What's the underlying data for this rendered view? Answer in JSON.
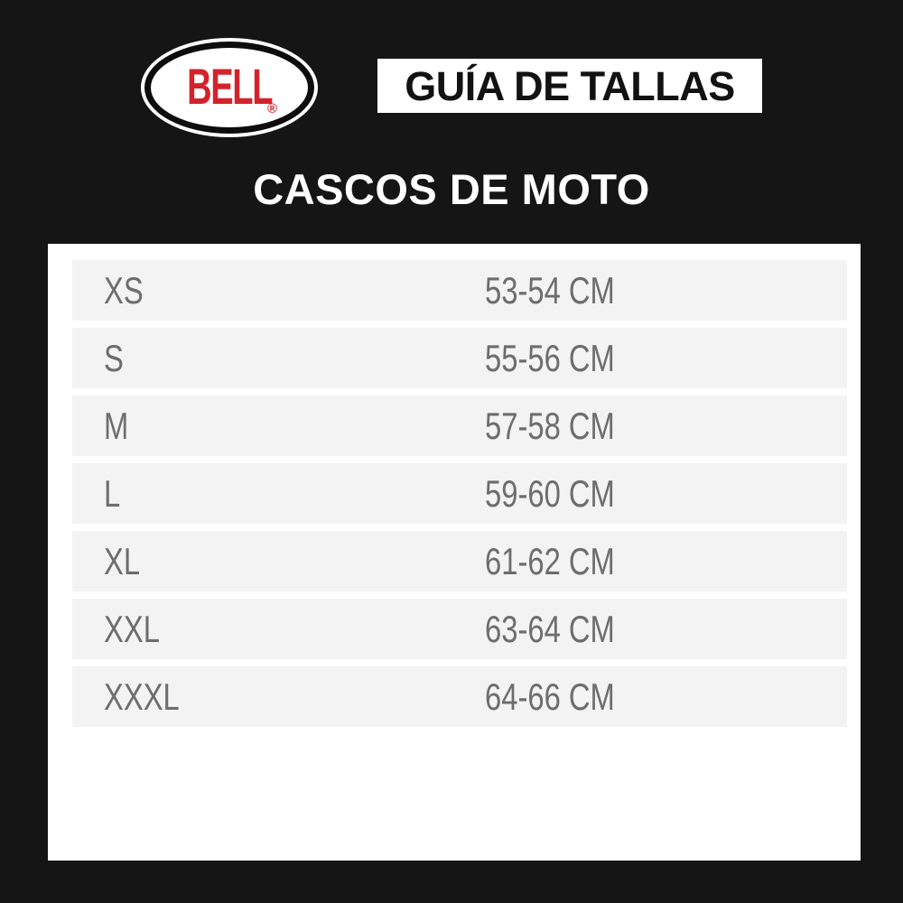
{
  "header": {
    "logo": {
      "brand": "BELL",
      "registered_mark": "®"
    },
    "badge": {
      "label": "GUÍA DE TALLAS"
    }
  },
  "title": "CASCOS DE MOTO",
  "size_table": {
    "rows": [
      {
        "size": "XS",
        "measurement": "53-54 CM"
      },
      {
        "size": "S",
        "measurement": "55-56 CM"
      },
      {
        "size": "M",
        "measurement": "57-58 CM"
      },
      {
        "size": "L",
        "measurement": "59-60 CM"
      },
      {
        "size": "XL",
        "measurement": "61-62 CM"
      },
      {
        "size": "XXL",
        "measurement": "63-64 CM"
      },
      {
        "size": "XXXL",
        "measurement": "64-66 CM"
      }
    ]
  },
  "colors": {
    "background": "#151515",
    "brand_red": "#d2232c",
    "panel_white": "#ffffff",
    "row_background": "#f3f3f3",
    "table_text": "#6d6d6d",
    "badge_text": "#121212"
  },
  "chart_data": {
    "type": "table",
    "title": "GUÍA DE TALLAS — CASCOS DE MOTO",
    "rows": [
      [
        "XS",
        "53-54 CM"
      ],
      [
        "S",
        "55-56 CM"
      ],
      [
        "M",
        "57-58 CM"
      ],
      [
        "L",
        "59-60 CM"
      ],
      [
        "XL",
        "61-62 CM"
      ],
      [
        "XXL",
        "63-64 CM"
      ],
      [
        "XXXL",
        "64-66 CM"
      ]
    ]
  }
}
